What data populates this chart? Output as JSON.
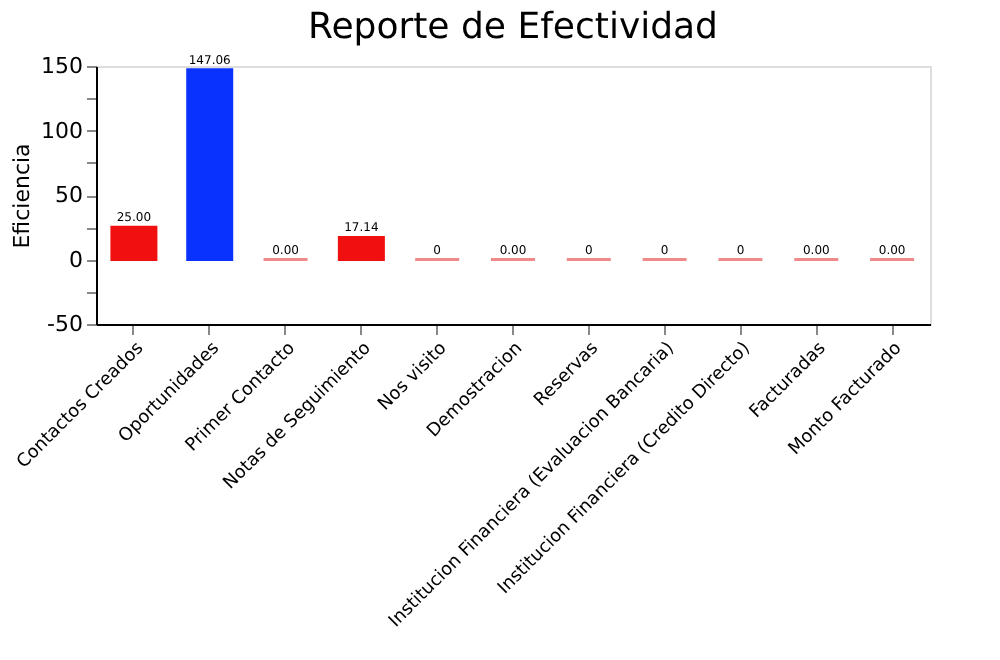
{
  "chart_data": {
    "type": "bar",
    "title": "Reporte de Efectividad",
    "ylabel": "Eficiencia",
    "categories": [
      "Contactos Creados",
      "Oportunidades",
      "Primer Contacto",
      "Notas de Seguimiento",
      "Nos visito",
      "Demostracion",
      "Reservas",
      "Institucion Financiera (Evaluacion Bancaria)",
      "Institucion Financiera (Credito Directo)",
      "Facturadas",
      "Monto Facturado"
    ],
    "values": [
      25,
      147.06,
      0,
      17.14,
      0,
      0,
      0,
      0,
      0,
      0,
      0
    ],
    "value_labels": [
      "25.00",
      "147.06",
      "0.00",
      "17.14",
      "0",
      "0.00",
      "0",
      "0",
      "0",
      "0.00",
      "0.00"
    ],
    "colors": [
      "#f01010",
      "#0a32ff",
      "#f08a8a",
      "#f01010",
      "#f08a8a",
      "#f08a8a",
      "#f08a8a",
      "#f08a8a",
      "#f08a8a",
      "#f08a8a",
      "#f08a8a"
    ],
    "ylim": [
      -50,
      150
    ],
    "yticks": [
      -50,
      {
        "value": -25,
        "label": null
      },
      0,
      {
        "value": 25,
        "label": null
      },
      50,
      {
        "value": 75,
        "label": null
      },
      100,
      {
        "value": 125,
        "label": null
      },
      150
    ],
    "grid": false,
    "legend": false
  }
}
